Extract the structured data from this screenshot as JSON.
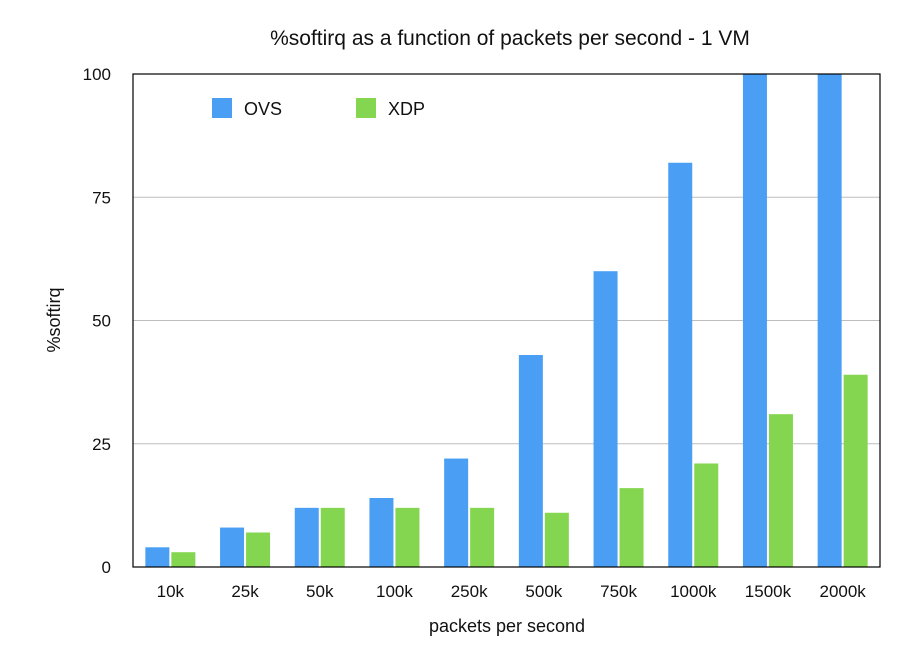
{
  "chart_data": {
    "type": "bar",
    "title": "%softirq as a function of packets per second - 1 VM",
    "xlabel": "packets per second",
    "ylabel": "%softirq",
    "categories": [
      "10k",
      "25k",
      "50k",
      "100k",
      "250k",
      "500k",
      "750k",
      "1000k",
      "1500k",
      "2000k"
    ],
    "series": [
      {
        "name": "OVS",
        "color": "#4a9ff5",
        "values": [
          4,
          8,
          12,
          14,
          22,
          43,
          60,
          82,
          100,
          100
        ]
      },
      {
        "name": "XDP",
        "color": "#84d650",
        "values": [
          3,
          7,
          12,
          12,
          12,
          11,
          16,
          21,
          31,
          39
        ]
      }
    ],
    "ylim": [
      0,
      100
    ],
    "yticks": [
      "0",
      "25",
      "50",
      "75",
      "100"
    ],
    "grid": true,
    "legend": "top-left"
  }
}
